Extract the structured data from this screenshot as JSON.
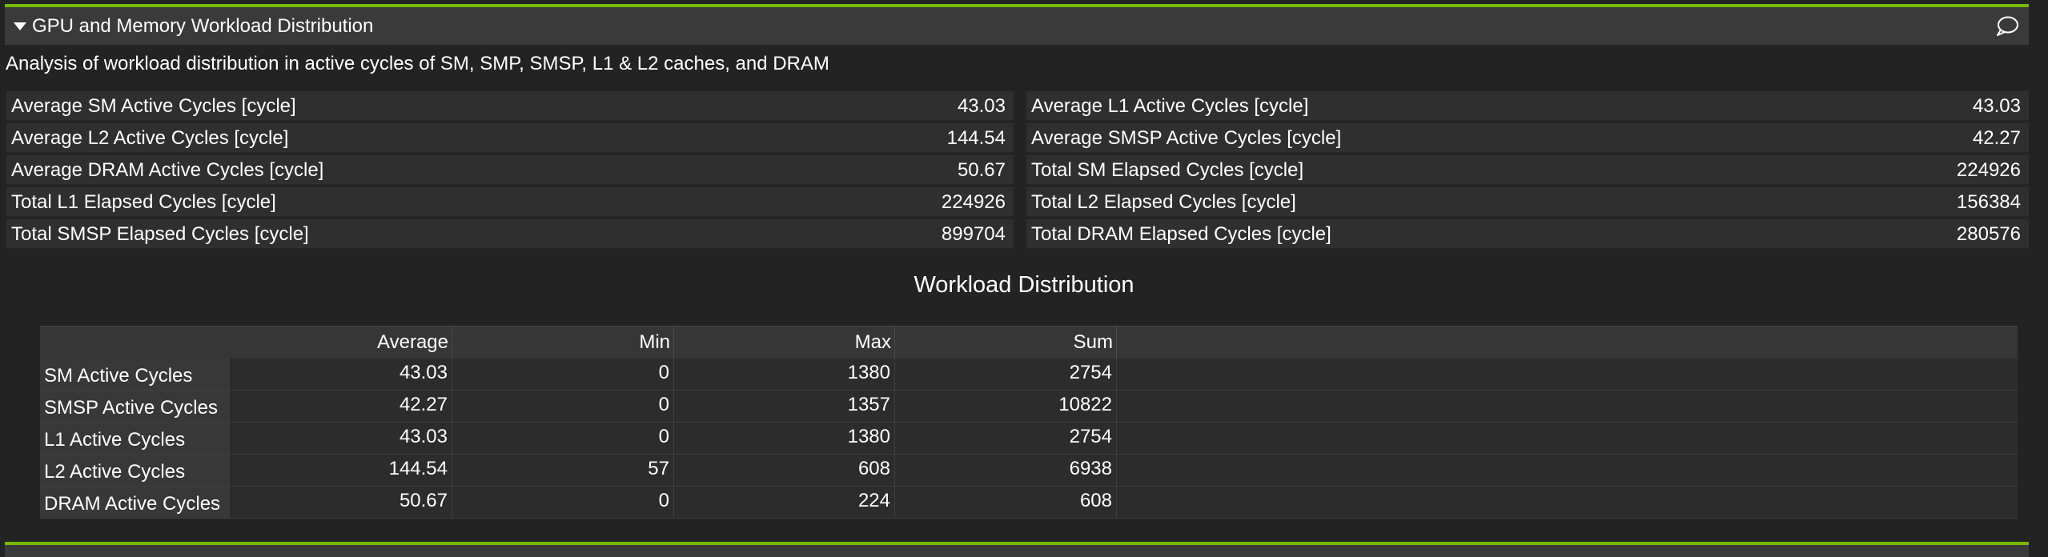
{
  "section": {
    "title": "GPU and Memory Workload Distribution",
    "description": "Analysis of workload distribution in active cycles of SM, SMP, SMSP, L1 & L2 caches, and DRAM",
    "accent_color": "#76b900"
  },
  "metrics": {
    "left": [
      {
        "label": "Average SM Active Cycles [cycle]",
        "value": "43.03"
      },
      {
        "label": "Average L2 Active Cycles [cycle]",
        "value": "144.54"
      },
      {
        "label": "Average DRAM Active Cycles [cycle]",
        "value": "50.67"
      },
      {
        "label": "Total L1 Elapsed Cycles [cycle]",
        "value": "224926"
      },
      {
        "label": "Total SMSP Elapsed Cycles [cycle]",
        "value": "899704"
      }
    ],
    "right": [
      {
        "label": "Average L1 Active Cycles [cycle]",
        "value": "43.03"
      },
      {
        "label": "Average SMSP Active Cycles [cycle]",
        "value": "42.27"
      },
      {
        "label": "Total SM Elapsed Cycles [cycle]",
        "value": "224926"
      },
      {
        "label": "Total L2 Elapsed Cycles [cycle]",
        "value": "156384"
      },
      {
        "label": "Total DRAM Elapsed Cycles [cycle]",
        "value": "280576"
      }
    ]
  },
  "workload": {
    "title": "Workload Distribution",
    "columns": [
      "Average",
      "Min",
      "Max",
      "Sum"
    ],
    "rows": [
      {
        "label": "SM Active Cycles",
        "values": [
          "43.03",
          "0",
          "1380",
          "2754"
        ]
      },
      {
        "label": "SMSP Active Cycles",
        "values": [
          "42.27",
          "0",
          "1357",
          "10822"
        ]
      },
      {
        "label": "L1 Active Cycles",
        "values": [
          "43.03",
          "0",
          "1380",
          "2754"
        ]
      },
      {
        "label": "L2 Active Cycles",
        "values": [
          "144.54",
          "57",
          "608",
          "6938"
        ]
      },
      {
        "label": "DRAM Active Cycles",
        "values": [
          "50.67",
          "0",
          "224",
          "608"
        ]
      }
    ]
  },
  "icons": {
    "collapse": "triangle-down-icon",
    "comment": "speech-bubble-icon"
  }
}
